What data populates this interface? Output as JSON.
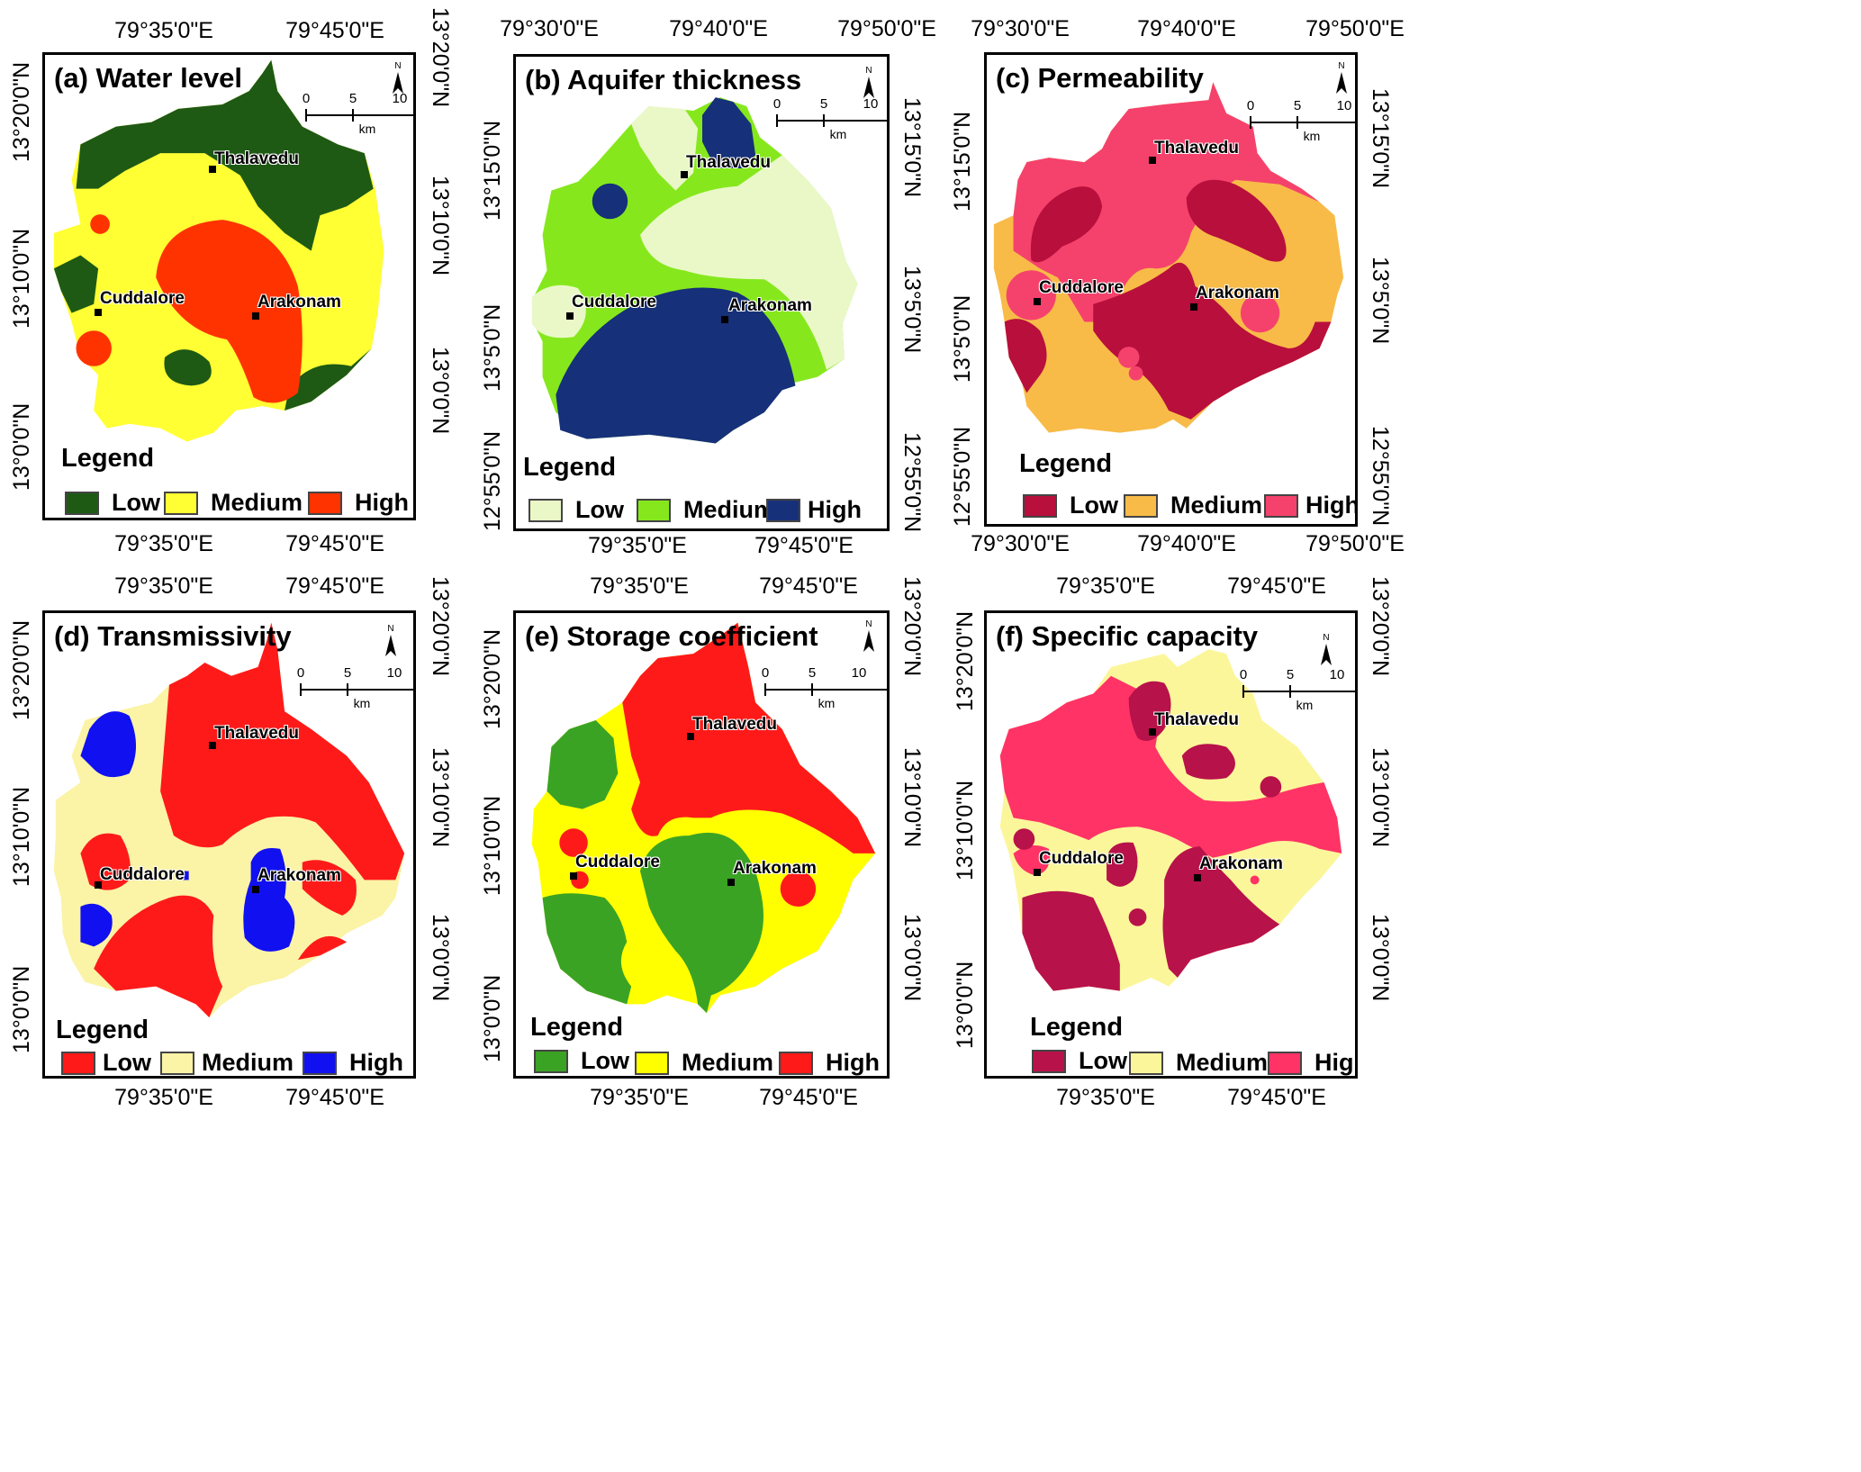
{
  "legend_title": "Legend",
  "place_names": {
    "thalavedu": "Thalavedu",
    "cuddalore": "Cuddalore",
    "arakonam": "Arakonam"
  },
  "scale": {
    "n0": "0",
    "n5": "5",
    "n10": "10",
    "unit": "km"
  },
  "north_label": "N",
  "panels": [
    {
      "title": "(a) Water level",
      "legend": [
        {
          "label": "Low",
          "color": "#1e5a14"
        },
        {
          "label": "Medium",
          "color": "#ffff33"
        },
        {
          "label": "High",
          "color": "#ff3300"
        }
      ],
      "ticks": {
        "top": [
          "79°35'0\"E",
          "79°45'0\"E"
        ],
        "bottom": [
          "79°35'0\"E",
          "79°45'0\"E"
        ],
        "left": [
          "13°20'0\"N",
          "13°10'0\"N",
          "13°0'0\"N"
        ],
        "right": [
          "13°20'0\"N",
          "13°10'0\"N",
          "13°0'0\"N"
        ]
      }
    },
    {
      "title": "(b) Aquifer thickness",
      "legend": [
        {
          "label": "Low",
          "color": "#eaf8c8"
        },
        {
          "label": "Medium",
          "color": "#86e81c"
        },
        {
          "label": "High",
          "color": "#16307a"
        }
      ],
      "ticks": {
        "top": [
          "79°30'0\"E",
          "79°40'0\"E",
          "79°50'0\"E"
        ],
        "bottom": [
          "79°35'0\"E",
          "79°45'0\"E"
        ],
        "left": [
          "13°15'0\"N",
          "13°5'0\"N",
          "12°55'0\"N"
        ],
        "right": [
          "13°15'0\"N",
          "13°5'0\"N",
          "12°55'0\"N"
        ]
      }
    },
    {
      "title": "(c) Permeability",
      "legend": [
        {
          "label": "Low",
          "color": "#b80f3c"
        },
        {
          "label": "Medium",
          "color": "#f8bb48"
        },
        {
          "label": "High",
          "color": "#f5426c"
        }
      ],
      "ticks": {
        "top": [
          "79°30'0\"E",
          "79°40'0\"E",
          "79°50'0\"E"
        ],
        "bottom": [
          "79°30'0\"E",
          "79°40'0\"E",
          "79°50'0\"E"
        ],
        "left": [
          "13°15'0\"N",
          "13°5'0\"N",
          "12°55'0\"N"
        ],
        "right": [
          "13°15'0\"N",
          "13°5'0\"N",
          "12°55'0\"N"
        ]
      }
    },
    {
      "title": "(d) Transmissivity",
      "legend": [
        {
          "label": "Low",
          "color": "#ff1a1a"
        },
        {
          "label": "Medium",
          "color": "#fbf3a6"
        },
        {
          "label": "High",
          "color": "#1010f0"
        }
      ],
      "ticks": {
        "top": [
          "79°35'0\"E",
          "79°45'0\"E"
        ],
        "bottom": [
          "79°35'0\"E",
          "79°45'0\"E"
        ],
        "left": [
          "13°20'0\"N",
          "13°10'0\"N",
          "13°0'0\"N"
        ],
        "right": [
          "13°20'0\"N",
          "13°10'0\"N",
          "13°0'0\"N"
        ]
      }
    },
    {
      "title": "(e) Storage coefficient",
      "legend": [
        {
          "label": "Low",
          "color": "#3aa324"
        },
        {
          "label": "Medium",
          "color": "#ffff00"
        },
        {
          "label": "High",
          "color": "#ff1a1a"
        }
      ],
      "ticks": {
        "top": [
          "79°35'0\"E",
          "79°45'0\"E"
        ],
        "bottom": [
          "79°35'0\"E",
          "79°45'0\"E"
        ],
        "left": [
          "13°20'0\"N",
          "13°10'0\"N",
          "13°0'0\"N"
        ],
        "right": [
          "13°20'0\"N",
          "13°10'0\"N",
          "13°0'0\"N"
        ]
      }
    },
    {
      "title": "(f) Specific capacity",
      "legend": [
        {
          "label": "Low",
          "color": "#b8124a"
        },
        {
          "label": "Medium",
          "color": "#fbf69a"
        },
        {
          "label": "High",
          "color": "#ff3366"
        }
      ],
      "ticks": {
        "top": [
          "79°35'0\"E",
          "79°45'0\"E"
        ],
        "bottom": [
          "79°35'0\"E",
          "79°45'0\"E"
        ],
        "left": [
          "13°20'0\"N",
          "13°10'0\"N",
          "13°0'0\"N"
        ],
        "right": [
          "13°20'0\"N",
          "13°10'0\"N",
          "13°0'0\"N"
        ]
      }
    }
  ]
}
